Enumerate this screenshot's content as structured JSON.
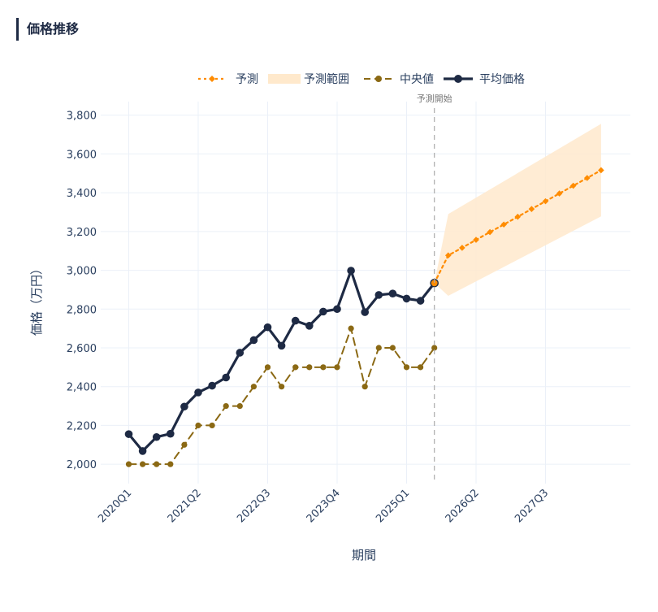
{
  "panel": {
    "title": "価格推移"
  },
  "chart_data": {
    "type": "line",
    "xlabel": "期間",
    "ylabel": "価格（万円）",
    "ylim": [
      1900,
      3870
    ],
    "yticks": [
      2000,
      2200,
      2400,
      2600,
      2800,
      3000,
      3200,
      3400,
      3600,
      3800
    ],
    "xticks": [
      {
        "label": "2020Q1",
        "x": "2020Q1"
      },
      {
        "label": "2021Q2",
        "x": "2021Q2"
      },
      {
        "label": "2022Q3",
        "x": "2022Q3"
      },
      {
        "label": "2023Q4",
        "x": "2023Q4"
      },
      {
        "label": "2025Q1",
        "x": "2025Q1"
      },
      {
        "label": "2026Q2",
        "x": "2026Q2"
      },
      {
        "label": "2027Q3",
        "x": "2027Q3"
      }
    ],
    "legend": {
      "placement": "top"
    },
    "annotation": {
      "text": "予測開始",
      "x": "2025Q3"
    },
    "series": [
      {
        "name": "平均価格",
        "color": "#1e2a44",
        "style": "solid",
        "x": [
          "2020Q1",
          "2020Q2",
          "2020Q3",
          "2020Q4",
          "2021Q1",
          "2021Q2",
          "2021Q3",
          "2021Q4",
          "2022Q1",
          "2022Q2",
          "2022Q3",
          "2022Q4",
          "2023Q1",
          "2023Q2",
          "2023Q3",
          "2023Q4",
          "2024Q1",
          "2024Q2",
          "2024Q3",
          "2024Q4",
          "2025Q1",
          "2025Q2",
          "2025Q3"
        ],
        "y": [
          2155,
          2068,
          2140,
          2157,
          2297,
          2370,
          2405,
          2447,
          2575,
          2640,
          2706,
          2611,
          2740,
          2714,
          2787,
          2800,
          2998,
          2784,
          2873,
          2880,
          2854,
          2843,
          2934
        ]
      },
      {
        "name": "中央値",
        "color": "#8b6914",
        "style": "dash",
        "x": [
          "2020Q1",
          "2020Q2",
          "2020Q3",
          "2020Q4",
          "2021Q1",
          "2021Q2",
          "2021Q3",
          "2021Q4",
          "2022Q1",
          "2022Q2",
          "2022Q3",
          "2022Q4",
          "2023Q1",
          "2023Q2",
          "2023Q3",
          "2023Q4",
          "2024Q1",
          "2024Q2",
          "2024Q3",
          "2024Q4",
          "2025Q1",
          "2025Q2",
          "2025Q3"
        ],
        "y": [
          2000,
          2000,
          2000,
          2000,
          2100,
          2200,
          2200,
          2300,
          2300,
          2400,
          2500,
          2400,
          2500,
          2500,
          2500,
          2500,
          2700,
          2400,
          2600,
          2600,
          2500,
          2500,
          2600
        ]
      },
      {
        "name": "予測",
        "color": "#ff8c00",
        "style": "dot",
        "x": [
          "2025Q3",
          "2025Q4",
          "2026Q1",
          "2026Q2",
          "2026Q3",
          "2026Q4",
          "2027Q1",
          "2027Q2",
          "2027Q3",
          "2027Q4",
          "2028Q1",
          "2028Q2",
          "2028Q3"
        ],
        "y": [
          2934,
          3077,
          3116,
          3157,
          3197,
          3236,
          3276,
          3316,
          3356,
          3396,
          3436,
          3476,
          3516
        ]
      }
    ],
    "band": {
      "name": "予測範囲",
      "color": "#ffe9cc",
      "x": [
        "2025Q3",
        "2025Q4",
        "2028Q3"
      ],
      "upper": [
        2934,
        3290,
        3755
      ],
      "lower": [
        2934,
        2868,
        3278
      ]
    }
  }
}
